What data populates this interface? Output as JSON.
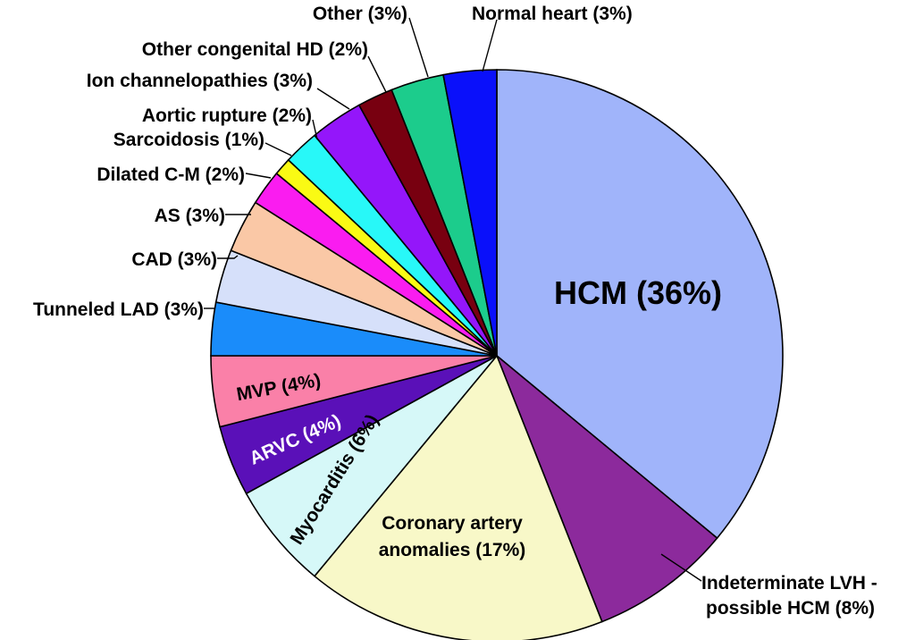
{
  "chart_data": {
    "type": "pie",
    "title": "",
    "slices": [
      {
        "label": "HCM (36%)",
        "value": 36,
        "color": "#a0b4fa"
      },
      {
        "label": "Indeterminate LVH - possible HCM (8%)",
        "value": 8,
        "color": "#8c2a9c"
      },
      {
        "label": "Coronary artery anomalies (17%)",
        "value": 17,
        "color": "#f8f8c8"
      },
      {
        "label": "Myocarditis (6%)",
        "value": 6,
        "color": "#d6f8f8"
      },
      {
        "label": "ARVC (4%)",
        "value": 4,
        "color": "#5a10b8"
      },
      {
        "label": "MVP (4%)",
        "value": 4,
        "color": "#fa80a8"
      },
      {
        "label": "Tunneled LAD (3%)",
        "value": 3,
        "color": "#1a8cfa"
      },
      {
        "label": "CAD (3%)",
        "value": 3,
        "color": "#d6e0fa"
      },
      {
        "label": "AS (3%)",
        "value": 3,
        "color": "#fac8a6"
      },
      {
        "label": "Dilated C-M (2%)",
        "value": 2,
        "color": "#fa1cf0"
      },
      {
        "label": "Sarcoidosis (1%)",
        "value": 1,
        "color": "#fafa14"
      },
      {
        "label": "Aortic rupture (2%)",
        "value": 2,
        "color": "#28f8f8"
      },
      {
        "label": "Ion channelopathies (3%)",
        "value": 3,
        "color": "#9416fa"
      },
      {
        "label": "Other congenital HD (2%)",
        "value": 2,
        "color": "#780010"
      },
      {
        "label": "Other (3%)",
        "value": 3,
        "color": "#1ccc8c"
      },
      {
        "label": "Normal heart (3%)",
        "value": 3,
        "color": "#0a10fa"
      }
    ],
    "labels": {
      "hcm": "HCM (36%)",
      "indeterminate_1": "Indeterminate LVH -",
      "indeterminate_2": "possible HCM (8%)",
      "coronary_1": "Coronary artery",
      "coronary_2": "anomalies (17%)",
      "myocarditis": "Myocarditis (6%)",
      "arvc": "ARVC (4%)",
      "mvp": "MVP (4%)",
      "tunneled_lad": "Tunneled LAD (3%)",
      "cad": "CAD (3%)",
      "as": "AS (3%)",
      "dilated_cm": "Dilated C-M (2%)",
      "sarcoidosis": "Sarcoidosis (1%)",
      "aortic_rupture": "Aortic rupture (2%)",
      "ion_channelopathies": "Ion channelopathies (3%)",
      "other_congenital_hd": "Other congenital HD (2%)",
      "other": "Other (3%)",
      "normal_heart": "Normal heart (3%)"
    }
  }
}
